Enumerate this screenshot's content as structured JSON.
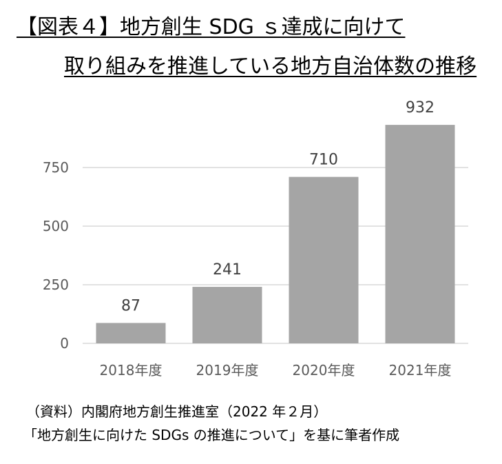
{
  "title": {
    "line1": "【図表４】地方創生 SDG ｓ達成に向けて",
    "line2": "取り組みを推進している地方自治体数の推移"
  },
  "source": {
    "line1": "（資料）内閣府地方創生推進室（2022 年２月）",
    "line2": "「地方創生に向けた SDGs の推進について」を基に筆者作成"
  },
  "colors": {
    "bar": "#a5a5a5",
    "grid": "#d9d9d9",
    "tick_text": "#595959",
    "label_text": "#404040"
  },
  "chart_data": {
    "type": "bar",
    "categories": [
      "2018年度",
      "2019年度",
      "2020年度",
      "2021年度"
    ],
    "values": [
      87,
      241,
      710,
      932
    ],
    "y_ticks": [
      0,
      250,
      500,
      750
    ],
    "ylim": [
      0,
      1000
    ],
    "grid": true,
    "legend": "none",
    "title": "",
    "xlabel": "",
    "ylabel": ""
  }
}
